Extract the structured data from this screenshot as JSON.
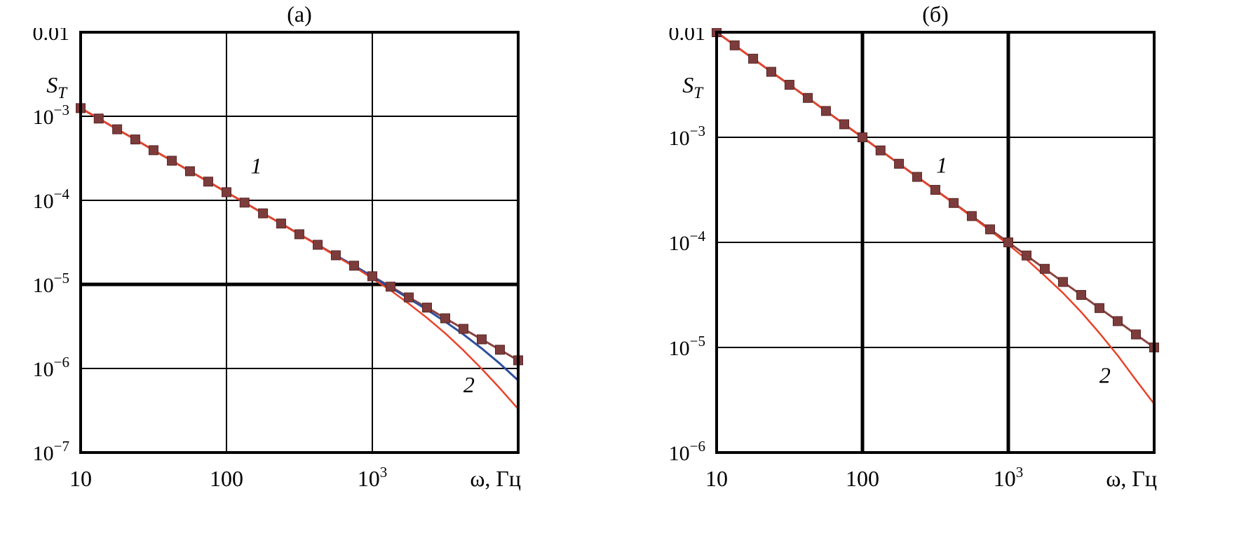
{
  "figure": {
    "background": "#ffffff",
    "frame_color": "#000000",
    "grid_color": "#000000"
  },
  "chart_data": [
    {
      "type": "line",
      "title": "(а)",
      "ylabel_main": "S",
      "ylabel_sub": "T",
      "xlabel": "ω, Гц",
      "xscale": "log",
      "yscale": "log",
      "grid": true,
      "legend": "none",
      "xlim": [
        10,
        10000
      ],
      "ylim": [
        1e-07,
        0.01
      ],
      "x_ticks": [
        {
          "label": "10",
          "value": 10
        },
        {
          "label": "100",
          "value": 100
        },
        {
          "label": "10^3",
          "value": 1000
        }
      ],
      "y_ticks": [
        {
          "label": "0.01",
          "value": 0.01
        },
        {
          "label": "10^−3",
          "value": 0.001
        },
        {
          "label": "10^−4",
          "value": 0.0001
        },
        {
          "label": "10^−5",
          "value": 1e-05
        },
        {
          "label": "10^−6",
          "value": 1e-06
        },
        {
          "label": "10^−7",
          "value": 1e-07
        }
      ],
      "bold_h": [
        1e-05
      ],
      "bold_v": [],
      "series": [
        {
          "name": "1",
          "color": "#8a4340",
          "width": 3,
          "marker": "square",
          "marker_size": 13,
          "marker_color": "#7d3c3c",
          "marker_stroke": "#5a2525",
          "x": [
            10,
            13.3,
            17.8,
            23.7,
            31.6,
            42.2,
            56.2,
            75,
            100,
            133,
            178,
            237,
            316,
            422,
            562,
            750,
            1000,
            1334,
            1778,
            2371,
            3162,
            4217,
            5623,
            7499,
            10000
          ],
          "y": [
            0.00125,
            0.00094,
            0.0007,
            0.00053,
            0.000395,
            0.000296,
            0.000222,
            0.000167,
            0.000125,
            9.4e-05,
            7e-05,
            5.3e-05,
            3.95e-05,
            2.96e-05,
            2.22e-05,
            1.67e-05,
            1.25e-05,
            9.4e-06,
            7e-06,
            5.3e-06,
            3.95e-06,
            2.96e-06,
            2.22e-06,
            1.67e-06,
            1.25e-06
          ]
        },
        {
          "name": "blue-unlabeled",
          "color": "#2e4f9e",
          "width": 3,
          "marker": "none",
          "x": [
            562,
            750,
            1000,
            1334,
            1778,
            2371,
            3162,
            4217,
            5623,
            7499,
            10000
          ],
          "y": [
            2.21e-05,
            1.66e-05,
            1.24e-05,
            9.2e-06,
            6.8e-06,
            5e-06,
            3.6e-06,
            2.54e-06,
            1.73e-06,
            1.14e-06,
            7.2e-07
          ]
        },
        {
          "name": "2",
          "color": "#e8432b",
          "width": 2.5,
          "marker": "none",
          "x": [
            10,
            13.3,
            17.8,
            23.7,
            31.6,
            42.2,
            56.2,
            75,
            100,
            133,
            178,
            237,
            316,
            422,
            562,
            750,
            1000,
            1334,
            1778,
            2371,
            3162,
            4217,
            5623,
            7499,
            10000
          ],
          "y": [
            0.00125,
            0.00094,
            0.0007,
            0.00053,
            0.000395,
            0.000296,
            0.000222,
            0.000167,
            0.000125,
            9.4e-05,
            7e-05,
            5.25e-05,
            3.93e-05,
            2.93e-05,
            2.18e-05,
            1.62e-05,
            1.18e-05,
            8.5e-06,
            5.9e-06,
            4e-06,
            2.62e-06,
            1.64e-06,
            9.9e-07,
            5.8e-07,
            3.3e-07
          ]
        }
      ],
      "labels": [
        {
          "text": "1",
          "x": 160,
          "y": 0.00021
        },
        {
          "text": "2",
          "x": 4600,
          "y": 5.2e-07
        }
      ]
    },
    {
      "type": "line",
      "title": "(б)",
      "ylabel_main": "S",
      "ylabel_sub": "T",
      "xlabel": "ω, Гц",
      "xscale": "log",
      "yscale": "log",
      "grid": true,
      "legend": "none",
      "xlim": [
        10,
        10000
      ],
      "ylim": [
        1e-06,
        0.01
      ],
      "x_ticks": [
        {
          "label": "10",
          "value": 10
        },
        {
          "label": "100",
          "value": 100
        },
        {
          "label": "10^3",
          "value": 1000
        }
      ],
      "y_ticks": [
        {
          "label": "0.01",
          "value": 0.01
        },
        {
          "label": "10^−3",
          "value": 0.001
        },
        {
          "label": "10^−4",
          "value": 0.0001
        },
        {
          "label": "10^−5",
          "value": 1e-05
        },
        {
          "label": "10^−6",
          "value": 1e-06
        }
      ],
      "bold_h": [],
      "bold_v": [
        100,
        1000
      ],
      "series": [
        {
          "name": "1",
          "color": "#8a4340",
          "width": 3,
          "marker": "square",
          "marker_size": 13,
          "marker_color": "#7d3c3c",
          "marker_stroke": "#5a2525",
          "x": [
            10,
            13.3,
            17.8,
            23.7,
            31.6,
            42.2,
            56.2,
            75,
            100,
            133,
            178,
            237,
            316,
            422,
            562,
            750,
            1000,
            1334,
            1778,
            2371,
            3162,
            4217,
            5623,
            7499,
            10000
          ],
          "y": [
            0.01,
            0.0075,
            0.0056,
            0.0042,
            0.00316,
            0.00237,
            0.00178,
            0.00133,
            0.001,
            0.00075,
            0.00056,
            0.00042,
            0.000316,
            0.000237,
            0.000178,
            0.000133,
            0.0001,
            7.5e-05,
            5.6e-05,
            4.2e-05,
            3.16e-05,
            2.37e-05,
            1.78e-05,
            1.33e-05,
            1e-05
          ]
        },
        {
          "name": "2",
          "color": "#e8432b",
          "width": 2.5,
          "marker": "none",
          "x": [
            10,
            13.3,
            17.8,
            23.7,
            31.6,
            42.2,
            56.2,
            75,
            100,
            133,
            178,
            237,
            316,
            422,
            562,
            750,
            1000,
            1334,
            1778,
            2371,
            3162,
            4217,
            5623,
            7499,
            10000
          ],
          "y": [
            0.01,
            0.0075,
            0.0056,
            0.0042,
            0.00316,
            0.00237,
            0.00178,
            0.00133,
            0.001,
            0.00075,
            0.00056,
            0.000419,
            0.000315,
            0.000235,
            0.000175,
            0.00013,
            9.5e-05,
            6.9e-05,
            4.8e-05,
            3.3e-05,
            2.17e-05,
            1.37e-05,
            8.4e-06,
            4.9e-06,
            2.9e-06
          ]
        }
      ],
      "labels": [
        {
          "text": "1",
          "x": 350,
          "y": 0.00046
        },
        {
          "text": "2",
          "x": 4600,
          "y": 4.6e-06
        }
      ]
    }
  ]
}
